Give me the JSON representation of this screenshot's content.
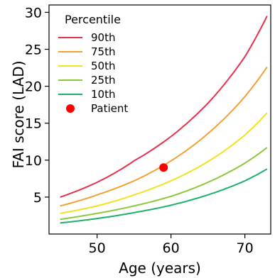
{
  "chart_data": {
    "type": "line",
    "xlabel": "Age (years)",
    "ylabel": "FAI score (LAD)",
    "xlim": [
      43.5,
      73.5
    ],
    "ylim": [
      0,
      31
    ],
    "xticks": [
      50,
      60,
      70
    ],
    "yticks": [
      5,
      10,
      15,
      20,
      25,
      30
    ],
    "x_range": [
      45,
      73
    ],
    "legend": {
      "title": "Percentile",
      "placement": "top-left"
    },
    "series": [
      {
        "name": "90th",
        "color": "#e8304f",
        "x": [
          45,
          50,
          55,
          60,
          65,
          70,
          73
        ],
        "values": [
          5.0,
          7.0,
          9.9,
          13.2,
          17.7,
          24.0,
          29.5
        ]
      },
      {
        "name": "75th",
        "color": "#f5a033",
        "x": [
          45,
          50,
          55,
          60,
          65,
          70,
          73
        ],
        "values": [
          3.8,
          5.3,
          7.2,
          9.9,
          13.6,
          18.6,
          22.6
        ]
      },
      {
        "name": "50th",
        "color": "#f2e21f",
        "x": [
          45,
          50,
          55,
          60,
          65,
          70,
          73
        ],
        "values": [
          2.8,
          3.8,
          5.3,
          7.2,
          9.8,
          13.4,
          16.4
        ]
      },
      {
        "name": "25th",
        "color": "#8cc83c",
        "x": [
          45,
          50,
          55,
          60,
          65,
          70,
          73
        ],
        "values": [
          2.0,
          2.8,
          3.8,
          5.1,
          7.0,
          9.6,
          11.7
        ]
      },
      {
        "name": "10th",
        "color": "#1bb06c",
        "x": [
          45,
          50,
          55,
          60,
          65,
          70,
          73
        ],
        "values": [
          1.5,
          2.1,
          2.9,
          3.9,
          5.3,
          7.2,
          8.8
        ]
      }
    ],
    "patient": {
      "name": "Patient",
      "x": 59,
      "y": 9.0,
      "color": "#ff0000"
    }
  }
}
